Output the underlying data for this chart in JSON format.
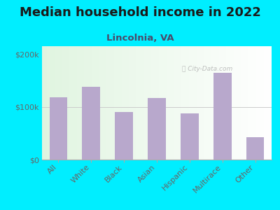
{
  "title": "Median household income in 2022",
  "subtitle": "Lincolnia, VA",
  "categories": [
    "All",
    "White",
    "Black",
    "Asian",
    "Hispanic",
    "Multirace",
    "Other"
  ],
  "values": [
    118000,
    138000,
    90000,
    117000,
    88000,
    165000,
    42000
  ],
  "bar_color": "#b8a8cc",
  "background_outer": "#00eeff",
  "title_color": "#1a1a1a",
  "subtitle_color": "#4a4a6a",
  "tick_color": "#666666",
  "yticks": [
    0,
    100000,
    200000
  ],
  "ytick_labels": [
    "$0",
    "$100k",
    "$200k"
  ],
  "ylim": [
    0,
    215000
  ],
  "watermark": "City-Data.com",
  "title_fontsize": 13,
  "subtitle_fontsize": 9.5,
  "tick_fontsize": 8
}
